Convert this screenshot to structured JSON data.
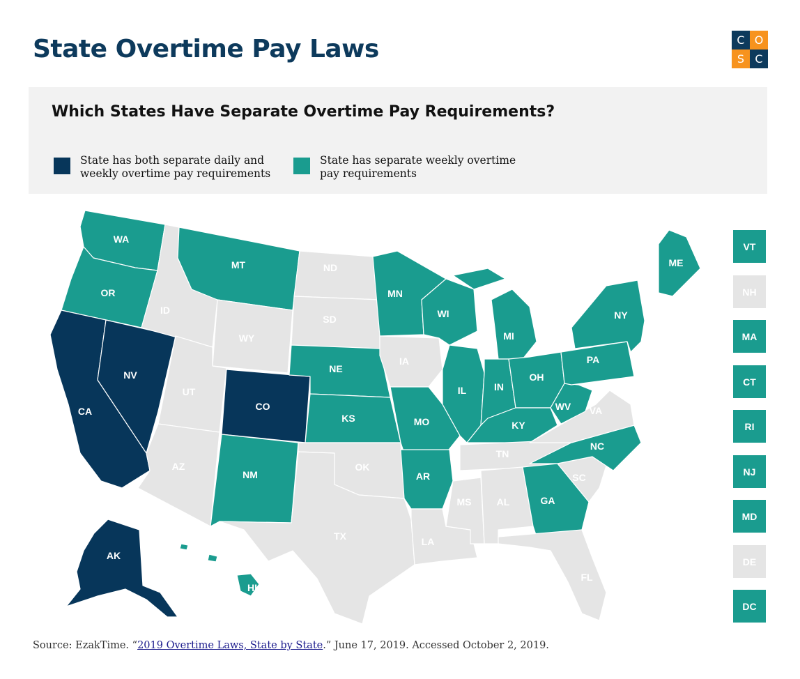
{
  "title": "State Overtime Pay Laws",
  "logo": {
    "letters": [
      "C",
      "O",
      "S",
      "C"
    ],
    "colors": [
      "#0d3a5c",
      "#f7931e",
      "#f7931e",
      "#0d3a5c"
    ]
  },
  "legend": {
    "heading": "Which States Have Separate Overtime Pay Requirements?",
    "items": [
      {
        "label": "State has both separate daily and\nweekly overtime pay requirements",
        "color": "#07365a"
      },
      {
        "label": "State has separate weekly overtime\npay requirements",
        "color": "#1a9c8f"
      }
    ]
  },
  "colors": {
    "daily_and_weekly": "#07365a",
    "weekly": "#1a9c8f",
    "none": "#e5e5e5"
  },
  "states": [
    {
      "abbr": "WA",
      "category": "weekly"
    },
    {
      "abbr": "OR",
      "category": "weekly"
    },
    {
      "abbr": "CA",
      "category": "daily_and_weekly"
    },
    {
      "abbr": "NV",
      "category": "daily_and_weekly"
    },
    {
      "abbr": "ID",
      "category": "none"
    },
    {
      "abbr": "MT",
      "category": "weekly"
    },
    {
      "abbr": "WY",
      "category": "none"
    },
    {
      "abbr": "UT",
      "category": "none"
    },
    {
      "abbr": "AZ",
      "category": "none"
    },
    {
      "abbr": "CO",
      "category": "daily_and_weekly"
    },
    {
      "abbr": "NM",
      "category": "weekly"
    },
    {
      "abbr": "ND",
      "category": "none"
    },
    {
      "abbr": "SD",
      "category": "none"
    },
    {
      "abbr": "NE",
      "category": "weekly"
    },
    {
      "abbr": "KS",
      "category": "weekly"
    },
    {
      "abbr": "OK",
      "category": "none"
    },
    {
      "abbr": "TX",
      "category": "none"
    },
    {
      "abbr": "MN",
      "category": "weekly"
    },
    {
      "abbr": "IA",
      "category": "none"
    },
    {
      "abbr": "MO",
      "category": "weekly"
    },
    {
      "abbr": "AR",
      "category": "weekly"
    },
    {
      "abbr": "LA",
      "category": "none"
    },
    {
      "abbr": "WI",
      "category": "weekly"
    },
    {
      "abbr": "IL",
      "category": "weekly"
    },
    {
      "abbr": "MS",
      "category": "none"
    },
    {
      "abbr": "MI",
      "category": "weekly"
    },
    {
      "abbr": "IN",
      "category": "weekly"
    },
    {
      "abbr": "KY",
      "category": "weekly"
    },
    {
      "abbr": "TN",
      "category": "none"
    },
    {
      "abbr": "AL",
      "category": "none"
    },
    {
      "abbr": "OH",
      "category": "weekly"
    },
    {
      "abbr": "WV",
      "category": "weekly"
    },
    {
      "abbr": "GA",
      "category": "weekly"
    },
    {
      "abbr": "FL",
      "category": "none"
    },
    {
      "abbr": "SC",
      "category": "none"
    },
    {
      "abbr": "NC",
      "category": "weekly"
    },
    {
      "abbr": "VA",
      "category": "none"
    },
    {
      "abbr": "PA",
      "category": "weekly"
    },
    {
      "abbr": "NY",
      "category": "weekly"
    },
    {
      "abbr": "ME",
      "category": "weekly"
    },
    {
      "abbr": "AK",
      "category": "daily_and_weekly"
    },
    {
      "abbr": "HI",
      "category": "weekly"
    }
  ],
  "small_states": [
    {
      "abbr": "VT",
      "category": "weekly"
    },
    {
      "abbr": "NH",
      "category": "none"
    },
    {
      "abbr": "MA",
      "category": "weekly"
    },
    {
      "abbr": "CT",
      "category": "weekly"
    },
    {
      "abbr": "RI",
      "category": "weekly"
    },
    {
      "abbr": "NJ",
      "category": "weekly"
    },
    {
      "abbr": "MD",
      "category": "weekly"
    },
    {
      "abbr": "DE",
      "category": "none"
    },
    {
      "abbr": "DC",
      "category": "weekly"
    }
  ],
  "source": {
    "prefix": "Source: EzakTime. “",
    "link_text": "2019 Overtime Laws, State by State",
    "suffix": ".” June 17, 2019. Accessed October 2, 2019."
  }
}
